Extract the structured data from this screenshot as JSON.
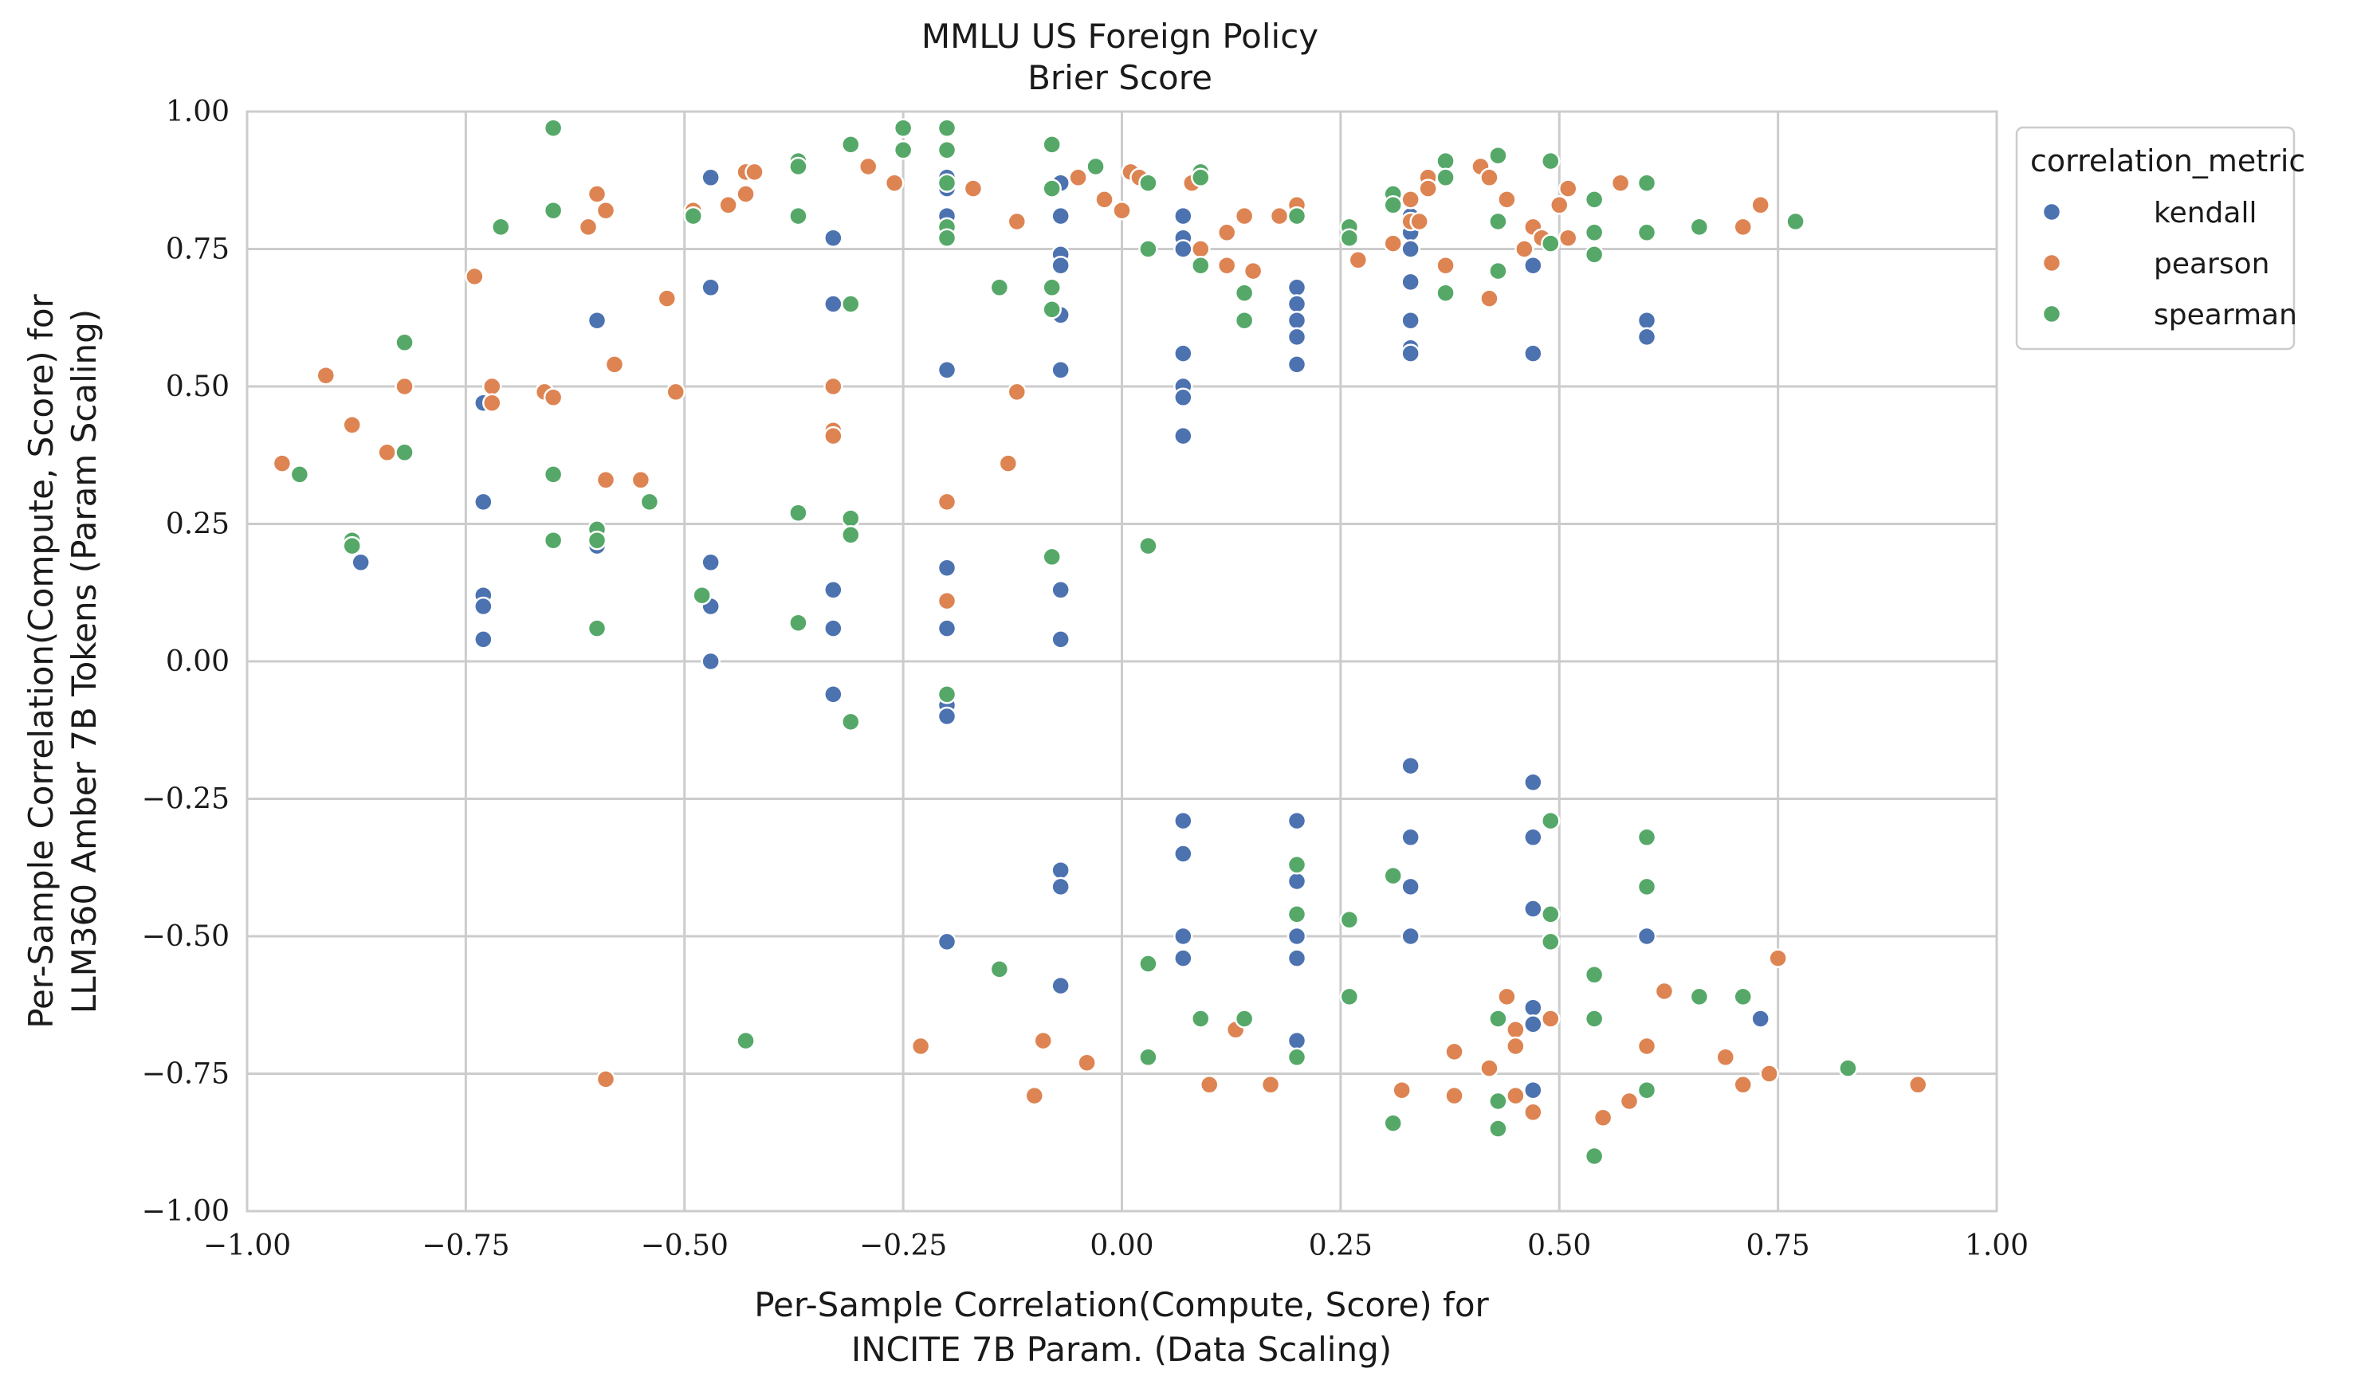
{
  "chart_data": {
    "type": "scatter",
    "title": [
      "MMLU US Foreign Policy",
      "Brier Score"
    ],
    "xlabel": [
      "Per-Sample Correlation(Compute, Score) for",
      "INCITE 7B Param. (Data Scaling)"
    ],
    "ylabel": [
      "Per-Sample Correlation(Compute, Score) for",
      "LLM360 Amber 7B Tokens (Param Scaling)"
    ],
    "xlim": [
      -1.0,
      1.0
    ],
    "ylim": [
      -1.0,
      1.0
    ],
    "xticks": [
      "−1.00",
      "−0.75",
      "−0.50",
      "−0.25",
      "0.00",
      "0.25",
      "0.50",
      "0.75",
      "1.00"
    ],
    "yticks": [
      "−1.00",
      "−0.75",
      "−0.50",
      "−0.25",
      "0.00",
      "0.25",
      "0.50",
      "0.75",
      "1.00"
    ],
    "grid": true,
    "legend": {
      "title": "correlation_metric",
      "placement": "outside-right-top",
      "entries": [
        "kendall",
        "pearson",
        "spearman"
      ]
    },
    "series": [
      {
        "name": "kendall",
        "color": "#4c72b0",
        "points": [
          [
            -0.87,
            0.18
          ],
          [
            -0.73,
            0.47
          ],
          [
            -0.73,
            0.29
          ],
          [
            -0.73,
            0.12
          ],
          [
            -0.73,
            0.1
          ],
          [
            -0.73,
            0.04
          ],
          [
            -0.6,
            0.62
          ],
          [
            -0.6,
            0.21
          ],
          [
            -0.47,
            0.88
          ],
          [
            -0.47,
            0.68
          ],
          [
            -0.47,
            0.18
          ],
          [
            -0.47,
            0.1
          ],
          [
            -0.47,
            0.0
          ],
          [
            -0.33,
            0.77
          ],
          [
            -0.33,
            0.65
          ],
          [
            -0.33,
            0.13
          ],
          [
            -0.33,
            0.06
          ],
          [
            -0.33,
            -0.06
          ],
          [
            -0.2,
            0.88
          ],
          [
            -0.2,
            0.86
          ],
          [
            -0.2,
            0.81
          ],
          [
            -0.2,
            0.78
          ],
          [
            -0.2,
            0.53
          ],
          [
            -0.2,
            0.17
          ],
          [
            -0.2,
            0.06
          ],
          [
            -0.2,
            -0.08
          ],
          [
            -0.2,
            -0.1
          ],
          [
            -0.2,
            -0.51
          ],
          [
            -0.07,
            0.87
          ],
          [
            -0.07,
            0.81
          ],
          [
            -0.07,
            0.74
          ],
          [
            -0.07,
            0.72
          ],
          [
            -0.07,
            0.63
          ],
          [
            -0.07,
            0.53
          ],
          [
            -0.07,
            0.13
          ],
          [
            -0.07,
            0.04
          ],
          [
            -0.07,
            -0.38
          ],
          [
            -0.07,
            -0.41
          ],
          [
            -0.07,
            -0.59
          ],
          [
            0.07,
            0.81
          ],
          [
            0.07,
            0.77
          ],
          [
            0.07,
            0.75
          ],
          [
            0.07,
            0.56
          ],
          [
            0.07,
            0.5
          ],
          [
            0.07,
            0.48
          ],
          [
            0.07,
            0.41
          ],
          [
            0.07,
            -0.29
          ],
          [
            0.07,
            -0.35
          ],
          [
            0.07,
            -0.5
          ],
          [
            0.07,
            -0.54
          ],
          [
            0.2,
            0.68
          ],
          [
            0.2,
            0.65
          ],
          [
            0.2,
            0.62
          ],
          [
            0.2,
            0.59
          ],
          [
            0.2,
            0.54
          ],
          [
            0.2,
            -0.29
          ],
          [
            0.2,
            -0.4
          ],
          [
            0.2,
            -0.5
          ],
          [
            0.2,
            -0.54
          ],
          [
            0.2,
            -0.69
          ],
          [
            0.33,
            0.81
          ],
          [
            0.33,
            0.78
          ],
          [
            0.33,
            0.75
          ],
          [
            0.33,
            0.69
          ],
          [
            0.33,
            0.62
          ],
          [
            0.33,
            0.57
          ],
          [
            0.33,
            0.56
          ],
          [
            0.33,
            -0.19
          ],
          [
            0.33,
            -0.32
          ],
          [
            0.33,
            -0.41
          ],
          [
            0.33,
            -0.5
          ],
          [
            0.47,
            0.72
          ],
          [
            0.47,
            0.56
          ],
          [
            0.47,
            -0.22
          ],
          [
            0.47,
            -0.32
          ],
          [
            0.47,
            -0.45
          ],
          [
            0.47,
            -0.63
          ],
          [
            0.47,
            -0.66
          ],
          [
            0.47,
            -0.78
          ],
          [
            0.6,
            0.62
          ],
          [
            0.6,
            0.59
          ],
          [
            0.6,
            -0.5
          ],
          [
            0.73,
            -0.65
          ]
        ]
      },
      {
        "name": "pearson",
        "color": "#dd8452",
        "points": [
          [
            -0.96,
            0.36
          ],
          [
            -0.91,
            0.52
          ],
          [
            -0.88,
            0.43
          ],
          [
            -0.84,
            0.38
          ],
          [
            -0.82,
            0.5
          ],
          [
            -0.74,
            0.7
          ],
          [
            -0.72,
            0.5
          ],
          [
            -0.72,
            0.47
          ],
          [
            -0.66,
            0.49
          ],
          [
            -0.65,
            0.48
          ],
          [
            -0.61,
            0.79
          ],
          [
            -0.6,
            0.85
          ],
          [
            -0.59,
            0.82
          ],
          [
            -0.59,
            0.33
          ],
          [
            -0.58,
            0.54
          ],
          [
            -0.59,
            -0.76
          ],
          [
            -0.55,
            0.33
          ],
          [
            -0.52,
            0.66
          ],
          [
            -0.51,
            0.49
          ],
          [
            -0.49,
            0.82
          ],
          [
            -0.45,
            0.83
          ],
          [
            -0.43,
            0.85
          ],
          [
            -0.43,
            0.89
          ],
          [
            -0.42,
            0.89
          ],
          [
            -0.37,
            0.9
          ],
          [
            -0.33,
            0.5
          ],
          [
            -0.33,
            0.42
          ],
          [
            -0.33,
            0.41
          ],
          [
            -0.29,
            0.9
          ],
          [
            -0.26,
            0.87
          ],
          [
            -0.23,
            -0.7
          ],
          [
            -0.2,
            0.29
          ],
          [
            -0.2,
            0.11
          ],
          [
            -0.17,
            0.86
          ],
          [
            -0.13,
            0.36
          ],
          [
            -0.12,
            0.8
          ],
          [
            -0.12,
            0.49
          ],
          [
            -0.1,
            -0.79
          ],
          [
            -0.09,
            -0.69
          ],
          [
            -0.05,
            0.88
          ],
          [
            -0.04,
            -0.73
          ],
          [
            -0.02,
            0.84
          ],
          [
            0.0,
            0.82
          ],
          [
            0.01,
            0.89
          ],
          [
            0.02,
            0.88
          ],
          [
            0.03,
            0.75
          ],
          [
            0.08,
            0.87
          ],
          [
            0.09,
            0.75
          ],
          [
            0.1,
            -0.77
          ],
          [
            0.12,
            0.72
          ],
          [
            0.12,
            0.78
          ],
          [
            0.13,
            -0.67
          ],
          [
            0.14,
            0.81
          ],
          [
            0.15,
            0.71
          ],
          [
            0.17,
            -0.77
          ],
          [
            0.18,
            0.81
          ],
          [
            0.2,
            0.83
          ],
          [
            0.27,
            0.73
          ],
          [
            0.31,
            0.76
          ],
          [
            0.32,
            -0.78
          ],
          [
            0.33,
            0.84
          ],
          [
            0.33,
            0.8
          ],
          [
            0.34,
            0.8
          ],
          [
            0.35,
            0.88
          ],
          [
            0.35,
            0.86
          ],
          [
            0.37,
            0.72
          ],
          [
            0.38,
            -0.71
          ],
          [
            0.38,
            -0.79
          ],
          [
            0.41,
            0.9
          ],
          [
            0.42,
            0.88
          ],
          [
            0.42,
            0.66
          ],
          [
            0.42,
            -0.74
          ],
          [
            0.44,
            0.84
          ],
          [
            0.44,
            -0.61
          ],
          [
            0.45,
            -0.67
          ],
          [
            0.45,
            -0.7
          ],
          [
            0.45,
            -0.79
          ],
          [
            0.46,
            0.75
          ],
          [
            0.47,
            0.79
          ],
          [
            0.47,
            -0.82
          ],
          [
            0.48,
            0.77
          ],
          [
            0.49,
            -0.65
          ],
          [
            0.5,
            0.83
          ],
          [
            0.51,
            0.86
          ],
          [
            0.51,
            0.77
          ],
          [
            0.55,
            -0.83
          ],
          [
            0.57,
            0.87
          ],
          [
            0.58,
            -0.8
          ],
          [
            0.6,
            -0.7
          ],
          [
            0.6,
            -0.78
          ],
          [
            0.62,
            -0.6
          ],
          [
            0.69,
            -0.72
          ],
          [
            0.71,
            -0.77
          ],
          [
            0.71,
            0.79
          ],
          [
            0.73,
            0.83
          ],
          [
            0.74,
            -0.75
          ],
          [
            0.75,
            -0.54
          ],
          [
            0.91,
            -0.77
          ]
        ]
      },
      {
        "name": "spearman",
        "color": "#55a868",
        "points": [
          [
            -0.94,
            0.34
          ],
          [
            -0.88,
            0.22
          ],
          [
            -0.88,
            0.21
          ],
          [
            -0.82,
            0.58
          ],
          [
            -0.82,
            0.38
          ],
          [
            -0.71,
            0.79
          ],
          [
            -0.65,
            0.97
          ],
          [
            -0.65,
            0.82
          ],
          [
            -0.65,
            0.34
          ],
          [
            -0.65,
            0.22
          ],
          [
            -0.6,
            0.24
          ],
          [
            -0.6,
            0.22
          ],
          [
            -0.6,
            0.06
          ],
          [
            -0.6,
            0.06
          ],
          [
            -0.54,
            0.29
          ],
          [
            -0.49,
            0.81
          ],
          [
            -0.48,
            0.12
          ],
          [
            -0.43,
            -0.69
          ],
          [
            -0.37,
            0.91
          ],
          [
            -0.37,
            0.9
          ],
          [
            -0.37,
            0.81
          ],
          [
            -0.37,
            0.27
          ],
          [
            -0.37,
            0.07
          ],
          [
            -0.31,
            0.94
          ],
          [
            -0.31,
            0.65
          ],
          [
            -0.31,
            0.26
          ],
          [
            -0.31,
            0.23
          ],
          [
            -0.31,
            -0.11
          ],
          [
            -0.25,
            0.97
          ],
          [
            -0.25,
            0.93
          ],
          [
            -0.2,
            0.97
          ],
          [
            -0.2,
            0.93
          ],
          [
            -0.2,
            0.87
          ],
          [
            -0.2,
            0.79
          ],
          [
            -0.2,
            0.77
          ],
          [
            -0.2,
            -0.06
          ],
          [
            -0.14,
            0.68
          ],
          [
            -0.14,
            -0.56
          ],
          [
            -0.08,
            0.94
          ],
          [
            -0.08,
            0.86
          ],
          [
            -0.08,
            0.68
          ],
          [
            -0.08,
            0.64
          ],
          [
            -0.08,
            0.19
          ],
          [
            -0.03,
            0.9
          ],
          [
            0.03,
            0.87
          ],
          [
            0.03,
            0.75
          ],
          [
            0.03,
            0.21
          ],
          [
            0.03,
            -0.55
          ],
          [
            0.03,
            -0.72
          ],
          [
            0.09,
            0.89
          ],
          [
            0.09,
            0.88
          ],
          [
            0.09,
            0.72
          ],
          [
            0.09,
            -0.65
          ],
          [
            0.14,
            0.67
          ],
          [
            0.14,
            0.62
          ],
          [
            0.14,
            -0.65
          ],
          [
            0.2,
            0.81
          ],
          [
            0.2,
            -0.37
          ],
          [
            0.2,
            -0.46
          ],
          [
            0.2,
            -0.72
          ],
          [
            0.26,
            0.79
          ],
          [
            0.26,
            0.77
          ],
          [
            0.26,
            -0.47
          ],
          [
            0.26,
            -0.61
          ],
          [
            0.31,
            0.85
          ],
          [
            0.31,
            0.83
          ],
          [
            0.31,
            -0.39
          ],
          [
            0.31,
            -0.84
          ],
          [
            0.37,
            0.91
          ],
          [
            0.37,
            0.88
          ],
          [
            0.37,
            0.67
          ],
          [
            0.43,
            0.92
          ],
          [
            0.43,
            0.8
          ],
          [
            0.43,
            0.71
          ],
          [
            0.43,
            -0.65
          ],
          [
            0.43,
            -0.8
          ],
          [
            0.43,
            -0.85
          ],
          [
            0.49,
            0.91
          ],
          [
            0.49,
            0.76
          ],
          [
            0.49,
            -0.29
          ],
          [
            0.49,
            -0.46
          ],
          [
            0.49,
            -0.51
          ],
          [
            0.54,
            0.84
          ],
          [
            0.54,
            0.78
          ],
          [
            0.54,
            0.74
          ],
          [
            0.54,
            -0.57
          ],
          [
            0.54,
            -0.65
          ],
          [
            0.54,
            -0.9
          ],
          [
            0.6,
            0.87
          ],
          [
            0.6,
            0.78
          ],
          [
            0.6,
            -0.32
          ],
          [
            0.6,
            -0.41
          ],
          [
            0.6,
            -0.78
          ],
          [
            0.66,
            0.79
          ],
          [
            0.66,
            -0.61
          ],
          [
            0.71,
            -0.61
          ],
          [
            0.77,
            0.8
          ],
          [
            0.83,
            -0.74
          ]
        ]
      }
    ]
  }
}
